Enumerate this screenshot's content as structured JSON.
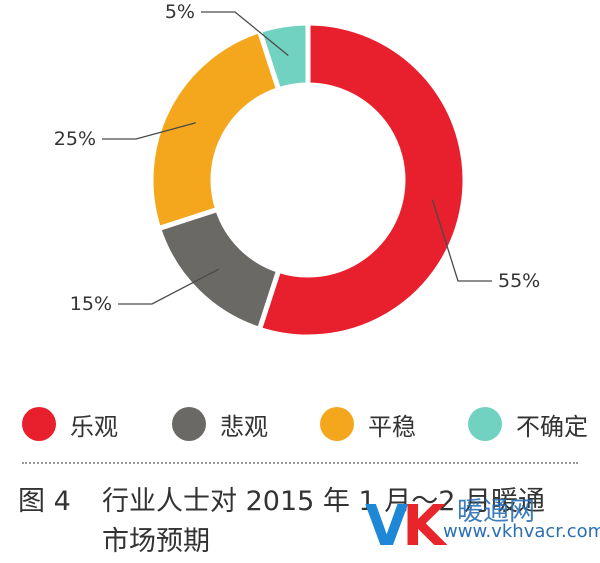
{
  "chart_data": {
    "type": "pie",
    "donut": true,
    "categories": [
      "乐观",
      "悲观",
      "平稳",
      "不确定"
    ],
    "values": [
      55,
      15,
      25,
      5
    ],
    "labels": [
      "55%",
      "15%",
      "25%",
      "5%"
    ],
    "colors": [
      "#e8202d",
      "#6b6966",
      "#f4a71c",
      "#72d2c1"
    ],
    "legend_position": "bottom"
  },
  "caption": {
    "figure_no": "图 4",
    "line1": "行业人士对 2015 年 1 月～2 月暖通",
    "line2": "市场预期"
  },
  "watermark": {
    "logo": "VK",
    "name": "暖通网",
    "url": "www.vkhvacr.com"
  }
}
